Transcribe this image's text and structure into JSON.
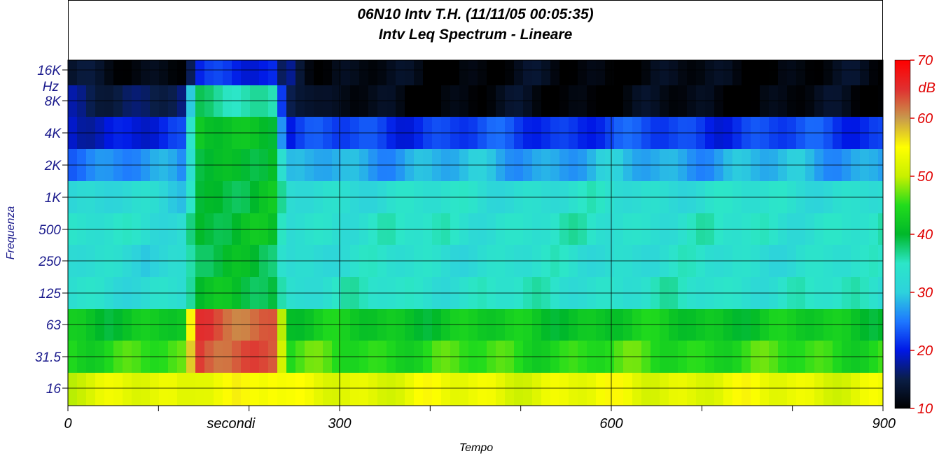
{
  "chart_data": {
    "type": "heatmap",
    "title": "06N10 Intv T.H. (11/11/05 00:05:35)",
    "subtitle": "Intv Leq Spectrum - Lineare",
    "xlabel": "Tempo",
    "ylabel": "Frequenza",
    "y_unit": "Hz",
    "x_unit_label": "secondi",
    "colorbar_unit": "dB",
    "x_ticks": [
      "0",
      "secondi",
      "300",
      "600",
      "900"
    ],
    "xlim": [
      0,
      900
    ],
    "y_ticks": [
      "16K",
      "8K",
      "4K",
      "2K",
      "1K",
      "500",
      "250",
      "125",
      "63",
      "31.5",
      "16"
    ],
    "colorbar_ticks": [
      70,
      60,
      50,
      40,
      30,
      20,
      10
    ],
    "colorbar_range": [
      10,
      70
    ],
    "colorscale": [
      "#000000",
      "#0a1e46",
      "#0018e6",
      "#1e78ff",
      "#2dd2dc",
      "#2ce6c8",
      "#00b82a",
      "#22dc1c",
      "#c8f000",
      "#ffff00",
      "#c89a4c",
      "#e03030",
      "#ff0000"
    ],
    "grid": true,
    "band_profile_db": {
      "bands": [
        "16K",
        "8K",
        "4K",
        "2K",
        "1K",
        "500",
        "250",
        "125",
        "63",
        "31.5",
        "16"
      ],
      "background_t0_130": [
        12,
        16,
        20,
        26,
        31,
        33,
        32,
        33,
        42,
        45,
        52
      ],
      "event_t140_230": [
        20,
        36,
        42,
        41,
        40,
        40,
        39,
        40,
        63,
        64,
        55
      ],
      "background_t280_900": [
        11,
        11,
        22,
        28,
        33,
        34,
        33,
        34,
        42,
        45,
        53
      ]
    }
  }
}
